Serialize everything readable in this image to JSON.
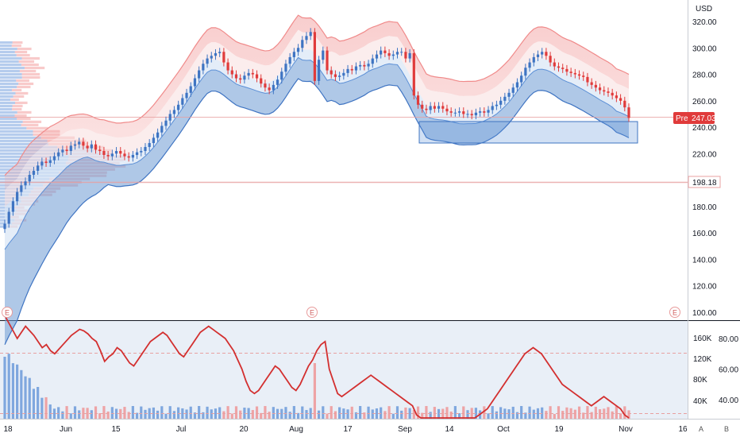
{
  "chart_data": [
    {
      "type": "candlestick",
      "currency_label": "USD",
      "y_range": [
        90,
        330
      ],
      "y_ticks": [
        "320.00",
        "300.00",
        "280.00",
        "260.00",
        "240.00",
        "220.00",
        "200.00",
        "180.00",
        "160.00",
        "140.00",
        "120.00",
        "100.00"
      ],
      "x_ticks": [
        "18",
        "Jun",
        "15",
        "Jul",
        "20",
        "Aug",
        "17",
        "Sep",
        "14",
        "Oct",
        "19",
        "Nov",
        "16"
      ],
      "price_label": {
        "tag": "Pre",
        "value": "247.03"
      },
      "level_label": "198.18",
      "event_markers": [
        "E",
        "E",
        "E"
      ],
      "closes": [
        167,
        176,
        184,
        191,
        196,
        199,
        204,
        207,
        211,
        214,
        213,
        215,
        218,
        221,
        223,
        222,
        226,
        227,
        229,
        226,
        224,
        227,
        223,
        222,
        219,
        218,
        220,
        222,
        220,
        218,
        217,
        219,
        221,
        222,
        225,
        228,
        232,
        236,
        241,
        245,
        250,
        253,
        257,
        262,
        266,
        271,
        277,
        283,
        288,
        292,
        294,
        296,
        297,
        289,
        283,
        280,
        277,
        276,
        279,
        281,
        280,
        277,
        273,
        270,
        268,
        272,
        276,
        282,
        288,
        293,
        297,
        300,
        306,
        309,
        312,
        275,
        291,
        298,
        283,
        280,
        278,
        279,
        281,
        284,
        283,
        286,
        287,
        286,
        288,
        292,
        295,
        298,
        296,
        294,
        295,
        297,
        297,
        292,
        296,
        264,
        257,
        254,
        253,
        256,
        254,
        256,
        254,
        252,
        251,
        251,
        252,
        250,
        250,
        249,
        251,
        252,
        251,
        253,
        256,
        257,
        260,
        263,
        266,
        270,
        274,
        279,
        285,
        289,
        293,
        295,
        297,
        294,
        289,
        286,
        285,
        284,
        282,
        281,
        280,
        279,
        278,
        274,
        272,
        270,
        268,
        267,
        266,
        264,
        262,
        260,
        255,
        247
      ],
      "highs_offset": 3,
      "volume_axis_ticks": [
        "160K",
        "120K",
        "80K",
        "40K"
      ],
      "indicator": {
        "name": "",
        "ticks": [
          "80.00",
          "60.00",
          "40.00"
        ],
        "y_range": [
          20,
          100
        ],
        "values": [
          95,
          90,
          85,
          80,
          84,
          88,
          85,
          82,
          78,
          74,
          76,
          72,
          70,
          73,
          76,
          79,
          82,
          84,
          86,
          85,
          83,
          80,
          78,
          72,
          65,
          68,
          70,
          74,
          72,
          68,
          64,
          62,
          66,
          70,
          74,
          78,
          80,
          82,
          84,
          82,
          78,
          74,
          70,
          68,
          72,
          76,
          80,
          84,
          86,
          88,
          86,
          84,
          82,
          80,
          76,
          72,
          66,
          60,
          52,
          46,
          44,
          46,
          50,
          54,
          58,
          62,
          60,
          56,
          52,
          48,
          46,
          50,
          56,
          62,
          66,
          72,
          76,
          78,
          60,
          52,
          44,
          42,
          44,
          46,
          48,
          50,
          52,
          54,
          56,
          54,
          52,
          50,
          48,
          46,
          44,
          42,
          40,
          38,
          36,
          30,
          24,
          22,
          21,
          22,
          24,
          22,
          21,
          22,
          24,
          23,
          22,
          24,
          26,
          28,
          30,
          32,
          34,
          38,
          42,
          46,
          50,
          54,
          58,
          62,
          66,
          70,
          72,
          74,
          72,
          70,
          66,
          62,
          58,
          54,
          50,
          48,
          46,
          44,
          42,
          40,
          38,
          36,
          38,
          40,
          42,
          40,
          38,
          36,
          34,
          30,
          24
        ]
      },
      "volume_profile": "left-side horizontal histogram",
      "bands": "upper red band and lower blue band"
    }
  ],
  "labels": {
    "scale_A": "A",
    "scale_B": "B"
  }
}
